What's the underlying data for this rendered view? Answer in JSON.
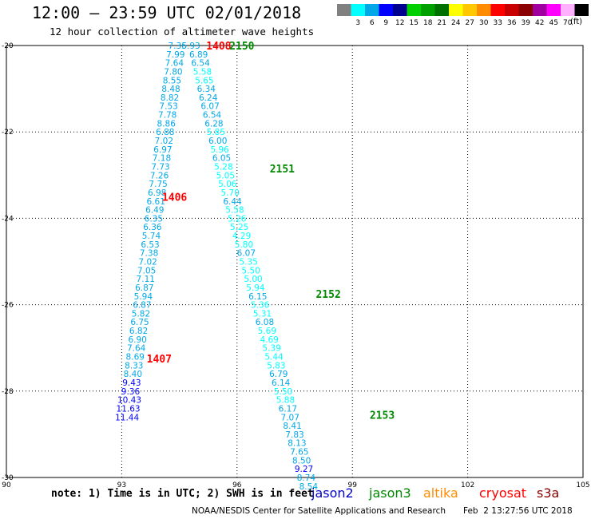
{
  "header": {
    "title": "12:00 — 23:59 UTC 02/01/2018",
    "subtitle": "12 hour collection of altimeter wave heights"
  },
  "legend": {
    "unit": "(ft)",
    "bins": [
      {
        "label": "",
        "color": "#808080"
      },
      {
        "label": "3",
        "color": "#00ffff"
      },
      {
        "label": "6",
        "color": "#00a8e8"
      },
      {
        "label": "9",
        "color": "#0000ff"
      },
      {
        "label": "12",
        "color": "#000090"
      },
      {
        "label": "15",
        "color": "#00d000"
      },
      {
        "label": "18",
        "color": "#00a000"
      },
      {
        "label": "21",
        "color": "#007000"
      },
      {
        "label": "24",
        "color": "#ffff00"
      },
      {
        "label": "27",
        "color": "#ffc800"
      },
      {
        "label": "30",
        "color": "#ff8c00"
      },
      {
        "label": "33",
        "color": "#ff0000"
      },
      {
        "label": "36",
        "color": "#c80000"
      },
      {
        "label": "39",
        "color": "#8b0000"
      },
      {
        "label": "42",
        "color": "#a000a0"
      },
      {
        "label": "45",
        "color": "#ff00ff"
      },
      {
        "label": "70",
        "color": "#ffb0ff"
      },
      {
        "label": "",
        "color": "#000000"
      }
    ]
  },
  "footer": {
    "note": "note: 1) Time is in UTC; 2) SWH is in feet",
    "satellites": [
      {
        "name": "jason2",
        "color": "#0000cc"
      },
      {
        "name": "jason3",
        "color": "#008800"
      },
      {
        "name": "altika",
        "color": "#ff8c00"
      },
      {
        "name": "cryosat",
        "color": "#ff0000"
      },
      {
        "name": "s3a",
        "color": "#8b0000"
      }
    ],
    "credit": "NOAA/NESDIS Center for Satellite Applications and Research",
    "timestamp": "Feb  2 13:27:56 UTC 2018"
  },
  "chart_data": {
    "type": "scatter",
    "x_axis": {
      "range": [
        90,
        105
      ],
      "ticks": [
        "90",
        "93",
        "96",
        "99",
        "102",
        "105"
      ]
    },
    "y_axis": {
      "range": [
        -30,
        -20
      ],
      "ticks": [
        "-20",
        "-22",
        "-24",
        "-26",
        "-28",
        "-30"
      ]
    },
    "grid": true,
    "track_labels": [
      {
        "text": "1408",
        "x": 95.2,
        "y": -20.0,
        "color": "#ff0000"
      },
      {
        "text": "2150",
        "x": 95.8,
        "y": -20.0,
        "color": "#008800"
      },
      {
        "text": "2151",
        "x": 96.85,
        "y": -22.85,
        "color": "#008800"
      },
      {
        "text": "1406",
        "x": 94.05,
        "y": -23.5,
        "color": "#ff0000"
      },
      {
        "text": "2152",
        "x": 98.05,
        "y": -25.75,
        "color": "#008800"
      },
      {
        "text": "1407",
        "x": 93.65,
        "y": -27.25,
        "color": "#ff0000"
      },
      {
        "text": "2153",
        "x": 99.45,
        "y": -28.55,
        "color": "#008800"
      }
    ],
    "series": [
      {
        "name": "1406",
        "points": [
          {
            "x": 94.45,
            "y": -20.0,
            "v": "7.36",
            "c": "#00a8e8"
          },
          {
            "x": 94.4,
            "y": -20.2,
            "v": "7.99",
            "c": "#00a8e8"
          },
          {
            "x": 94.37,
            "y": -20.4,
            "v": "7.64",
            "c": "#00a8e8"
          },
          {
            "x": 94.34,
            "y": -20.6,
            "v": "7.80",
            "c": "#00a8e8"
          },
          {
            "x": 94.31,
            "y": -20.8,
            "v": "8.55",
            "c": "#00a8e8"
          },
          {
            "x": 94.28,
            "y": -21.0,
            "v": "8.48",
            "c": "#00a8e8"
          },
          {
            "x": 94.25,
            "y": -21.2,
            "v": "8.82",
            "c": "#00a8e8"
          },
          {
            "x": 94.22,
            "y": -21.4,
            "v": "7.53",
            "c": "#00a8e8"
          },
          {
            "x": 94.19,
            "y": -21.6,
            "v": "7.78",
            "c": "#00a8e8"
          },
          {
            "x": 94.16,
            "y": -21.8,
            "v": "8.86",
            "c": "#00a8e8"
          },
          {
            "x": 94.13,
            "y": -22.0,
            "v": "6.88",
            "c": "#00a8e8"
          },
          {
            "x": 94.1,
            "y": -22.2,
            "v": "7.02",
            "c": "#00a8e8"
          },
          {
            "x": 94.07,
            "y": -22.4,
            "v": "6.97",
            "c": "#00a8e8"
          },
          {
            "x": 94.04,
            "y": -22.6,
            "v": "7.18",
            "c": "#00a8e8"
          },
          {
            "x": 94.01,
            "y": -22.8,
            "v": "7.73",
            "c": "#00a8e8"
          },
          {
            "x": 93.98,
            "y": -23.0,
            "v": "7.26",
            "c": "#00a8e8"
          },
          {
            "x": 93.95,
            "y": -23.2,
            "v": "7.75",
            "c": "#00a8e8"
          },
          {
            "x": 93.92,
            "y": -23.4,
            "v": "6.98",
            "c": "#00a8e8"
          },
          {
            "x": 93.89,
            "y": -23.6,
            "v": "6.61",
            "c": "#00a8e8"
          },
          {
            "x": 93.86,
            "y": -23.8,
            "v": "6.49",
            "c": "#00a8e8"
          },
          {
            "x": 93.83,
            "y": -24.0,
            "v": "6.35",
            "c": "#00a8e8"
          },
          {
            "x": 93.8,
            "y": -24.2,
            "v": "6.36",
            "c": "#00a8e8"
          },
          {
            "x": 93.77,
            "y": -24.4,
            "v": "5.74",
            "c": "#00a8e8"
          },
          {
            "x": 93.74,
            "y": -24.6,
            "v": "6.53",
            "c": "#00a8e8"
          },
          {
            "x": 93.71,
            "y": -24.8,
            "v": "7.38",
            "c": "#00a8e8"
          },
          {
            "x": 93.68,
            "y": -25.0,
            "v": "7.02",
            "c": "#00a8e8"
          },
          {
            "x": 93.65,
            "y": -25.2,
            "v": "7.05",
            "c": "#00a8e8"
          }
        ]
      },
      {
        "name": "1407",
        "points": [
          {
            "x": 93.62,
            "y": -25.4,
            "v": "7.11",
            "c": "#00a8e8"
          },
          {
            "x": 93.59,
            "y": -25.6,
            "v": "6.87",
            "c": "#00a8e8"
          },
          {
            "x": 93.56,
            "y": -25.8,
            "v": "5.94",
            "c": "#00a8e8"
          },
          {
            "x": 93.53,
            "y": -26.0,
            "v": "6.87",
            "c": "#00a8e8"
          },
          {
            "x": 93.5,
            "y": -26.2,
            "v": "5.82",
            "c": "#00a8e8"
          },
          {
            "x": 93.47,
            "y": -26.4,
            "v": "6.75",
            "c": "#00a8e8"
          },
          {
            "x": 93.44,
            "y": -26.6,
            "v": "6.82",
            "c": "#00a8e8"
          },
          {
            "x": 93.41,
            "y": -26.8,
            "v": "6.90",
            "c": "#00a8e8"
          },
          {
            "x": 93.38,
            "y": -27.0,
            "v": "7.64",
            "c": "#00a8e8"
          },
          {
            "x": 93.35,
            "y": -27.2,
            "v": "8.69",
            "c": "#00a8e8"
          },
          {
            "x": 93.32,
            "y": -27.4,
            "v": "8.33",
            "c": "#00a8e8"
          },
          {
            "x": 93.29,
            "y": -27.6,
            "v": "8.40",
            "c": "#00a8e8"
          },
          {
            "x": 93.26,
            "y": -27.8,
            "v": "9.43",
            "c": "#0000ff"
          },
          {
            "x": 93.23,
            "y": -28.0,
            "v": "9.36",
            "c": "#0000ff"
          },
          {
            "x": 93.2,
            "y": -28.2,
            "v": "10.43",
            "c": "#0000ff"
          },
          {
            "x": 93.17,
            "y": -28.4,
            "v": "11.63",
            "c": "#0000ff"
          },
          {
            "x": 93.14,
            "y": -28.6,
            "v": "11.44",
            "c": "#0000ff"
          }
        ]
      },
      {
        "name": "2150",
        "points": [
          {
            "x": 94.8,
            "y": -20.0,
            "v": "5.93",
            "c": "#00a8e8"
          },
          {
            "x": 95.0,
            "y": -20.2,
            "v": "6.89",
            "c": "#00a8e8"
          },
          {
            "x": 95.05,
            "y": -20.4,
            "v": "6.54",
            "c": "#00a8e8"
          },
          {
            "x": 95.1,
            "y": -20.6,
            "v": "5.58",
            "c": "#00ffff"
          },
          {
            "x": 95.15,
            "y": -20.8,
            "v": "5.65",
            "c": "#00ffff"
          },
          {
            "x": 95.2,
            "y": -21.0,
            "v": "6.34",
            "c": "#00a8e8"
          },
          {
            "x": 95.25,
            "y": -21.2,
            "v": "6.24",
            "c": "#00a8e8"
          },
          {
            "x": 95.3,
            "y": -21.4,
            "v": "6.07",
            "c": "#00a8e8"
          },
          {
            "x": 95.35,
            "y": -21.6,
            "v": "6.54",
            "c": "#00a8e8"
          },
          {
            "x": 95.4,
            "y": -21.8,
            "v": "6.28",
            "c": "#00a8e8"
          },
          {
            "x": 95.45,
            "y": -22.0,
            "v": "5.85",
            "c": "#00ffff"
          },
          {
            "x": 95.5,
            "y": -22.2,
            "v": "6.00",
            "c": "#00a8e8"
          },
          {
            "x": 95.55,
            "y": -22.4,
            "v": "5.96",
            "c": "#00ffff"
          },
          {
            "x": 95.6,
            "y": -22.6,
            "v": "6.05",
            "c": "#00a8e8"
          },
          {
            "x": 95.65,
            "y": -22.8,
            "v": "5.28",
            "c": "#00ffff"
          },
          {
            "x": 95.7,
            "y": -23.0,
            "v": "5.05",
            "c": "#00ffff"
          }
        ]
      },
      {
        "name": "2151",
        "points": [
          {
            "x": 95.75,
            "y": -23.2,
            "v": "5.06",
            "c": "#00ffff"
          },
          {
            "x": 95.82,
            "y": -23.4,
            "v": "5.70",
            "c": "#00ffff"
          },
          {
            "x": 95.88,
            "y": -23.6,
            "v": "6.44",
            "c": "#00a8e8"
          },
          {
            "x": 95.94,
            "y": -23.8,
            "v": "5.58",
            "c": "#00ffff"
          },
          {
            "x": 96.0,
            "y": -24.0,
            "v": "5.26",
            "c": "#00ffff"
          },
          {
            "x": 96.06,
            "y": -24.2,
            "v": "5.25",
            "c": "#00ffff"
          },
          {
            "x": 96.12,
            "y": -24.4,
            "v": "4.29",
            "c": "#00ffff"
          },
          {
            "x": 96.18,
            "y": -24.6,
            "v": "5.80",
            "c": "#00ffff"
          },
          {
            "x": 96.24,
            "y": -24.8,
            "v": "6.07",
            "c": "#00a8e8"
          },
          {
            "x": 96.3,
            "y": -25.0,
            "v": "5.35",
            "c": "#00ffff"
          },
          {
            "x": 96.36,
            "y": -25.2,
            "v": "5.50",
            "c": "#00ffff"
          },
          {
            "x": 96.42,
            "y": -25.4,
            "v": "5.00",
            "c": "#00ffff"
          },
          {
            "x": 96.48,
            "y": -25.6,
            "v": "5.94",
            "c": "#00ffff"
          }
        ]
      },
      {
        "name": "2152",
        "points": [
          {
            "x": 96.54,
            "y": -25.8,
            "v": "6.15",
            "c": "#00a8e8"
          },
          {
            "x": 96.6,
            "y": -26.0,
            "v": "5.36",
            "c": "#00ffff"
          },
          {
            "x": 96.66,
            "y": -26.2,
            "v": "5.31",
            "c": "#00ffff"
          },
          {
            "x": 96.72,
            "y": -26.4,
            "v": "6.08",
            "c": "#00a8e8"
          },
          {
            "x": 96.78,
            "y": -26.6,
            "v": "5.69",
            "c": "#00ffff"
          },
          {
            "x": 96.84,
            "y": -26.8,
            "v": "4.69",
            "c": "#00ffff"
          },
          {
            "x": 96.9,
            "y": -27.0,
            "v": "5.39",
            "c": "#00ffff"
          },
          {
            "x": 96.96,
            "y": -27.2,
            "v": "5.44",
            "c": "#00ffff"
          },
          {
            "x": 97.02,
            "y": -27.4,
            "v": "5.83",
            "c": "#00ffff"
          },
          {
            "x": 97.08,
            "y": -27.6,
            "v": "6.79",
            "c": "#00a8e8"
          },
          {
            "x": 97.14,
            "y": -27.8,
            "v": "6.14",
            "c": "#00a8e8"
          },
          {
            "x": 97.2,
            "y": -28.0,
            "v": "5.50",
            "c": "#00ffff"
          },
          {
            "x": 97.26,
            "y": -28.2,
            "v": "5.88",
            "c": "#00ffff"
          },
          {
            "x": 97.32,
            "y": -28.4,
            "v": "6.17",
            "c": "#00a8e8"
          }
        ]
      },
      {
        "name": "2153",
        "points": [
          {
            "x": 97.38,
            "y": -28.6,
            "v": "7.07",
            "c": "#00a8e8"
          },
          {
            "x": 97.44,
            "y": -28.8,
            "v": "8.41",
            "c": "#00a8e8"
          },
          {
            "x": 97.5,
            "y": -29.0,
            "v": "7.83",
            "c": "#00a8e8"
          },
          {
            "x": 97.56,
            "y": -29.2,
            "v": "8.13",
            "c": "#00a8e8"
          },
          {
            "x": 97.62,
            "y": -29.4,
            "v": "7.65",
            "c": "#00a8e8"
          },
          {
            "x": 97.68,
            "y": -29.6,
            "v": "8.50",
            "c": "#00a8e8"
          },
          {
            "x": 97.74,
            "y": -29.8,
            "v": "9.27",
            "c": "#0000ff"
          },
          {
            "x": 97.8,
            "y": -30.0,
            "v": "8.74",
            "c": "#00a8e8"
          },
          {
            "x": 97.86,
            "y": -30.2,
            "v": "8.54",
            "c": "#00a8e8"
          }
        ]
      }
    ]
  }
}
